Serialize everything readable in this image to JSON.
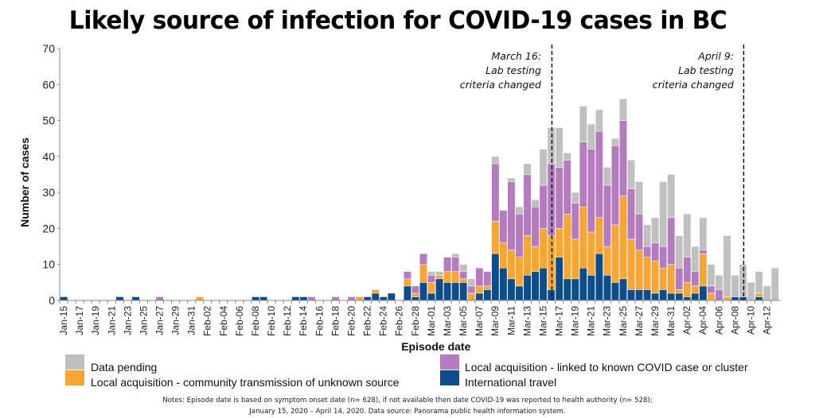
{
  "chart_data": {
    "type": "bar",
    "stacked": true,
    "title": "Likely source of infection for COVID-19 cases in BC",
    "xlabel": "Episode date",
    "ylabel": "Number of cases",
    "ylim": [
      0,
      70
    ],
    "yticks": [
      0,
      10,
      20,
      30,
      40,
      50,
      60,
      70
    ],
    "grid": false,
    "categories": [
      "Jan-15",
      "Jan-16",
      "Jan-17",
      "Jan-18",
      "Jan-19",
      "Jan-20",
      "Jan-21",
      "Jan-22",
      "Jan-23",
      "Jan-24",
      "Jan-25",
      "Jan-26",
      "Jan-27",
      "Jan-28",
      "Jan-29",
      "Jan-30",
      "Jan-31",
      "Feb-01",
      "Feb-02",
      "Feb-03",
      "Feb-04",
      "Feb-05",
      "Feb-06",
      "Feb-07",
      "Feb-08",
      "Feb-09",
      "Feb-10",
      "Feb-11",
      "Feb-12",
      "Feb-13",
      "Feb-14",
      "Feb-15",
      "Feb-16",
      "Feb-17",
      "Feb-18",
      "Feb-19",
      "Feb-20",
      "Feb-21",
      "Feb-22",
      "Feb-23",
      "Feb-24",
      "Feb-25",
      "Feb-26",
      "Feb-27",
      "Feb-28",
      "Feb-29",
      "Mar-01",
      "Mar-02",
      "Mar-03",
      "Mar-04",
      "Mar-05",
      "Mar-06",
      "Mar-07",
      "Mar-08",
      "Mar-09",
      "Mar-10",
      "Mar-11",
      "Mar-12",
      "Mar-13",
      "Mar-14",
      "Mar-15",
      "Mar-16",
      "Mar-17",
      "Mar-18",
      "Mar-19",
      "Mar-20",
      "Mar-21",
      "Mar-22",
      "Mar-23",
      "Mar-24",
      "Mar-25",
      "Mar-26",
      "Mar-27",
      "Mar-28",
      "Mar-29",
      "Mar-30",
      "Mar-31",
      "Apr-01",
      "Apr-02",
      "Apr-03",
      "Apr-04",
      "Apr-05",
      "Apr-06",
      "Apr-07",
      "Apr-08",
      "Apr-09",
      "Apr-10",
      "Apr-11",
      "Apr-12",
      "Apr-13"
    ],
    "tick_labels": [
      "Jan-15",
      "Jan-17",
      "Jan-19",
      "Jan-21",
      "Jan-23",
      "Jan-25",
      "Jan-27",
      "Jan-29",
      "Jan-31",
      "Feb-02",
      "Feb-04",
      "Feb-06",
      "Feb-08",
      "Feb-10",
      "Feb-12",
      "Feb-14",
      "Feb-16",
      "Feb-18",
      "Feb-20",
      "Feb-22",
      "Feb-24",
      "Feb-26",
      "Feb-28",
      "Mar-01",
      "Mar-03",
      "Mar-05",
      "Mar-07",
      "Mar-09",
      "Mar-11",
      "Mar-13",
      "Mar-15",
      "Mar-17",
      "Mar-19",
      "Mar-21",
      "Mar-23",
      "Mar-25",
      "Mar-27",
      "Mar-29",
      "Mar-31",
      "Apr-02",
      "Apr-04",
      "Apr-06",
      "Apr-08",
      "Apr-10",
      "Apr-12"
    ],
    "series": [
      {
        "name": "International travel",
        "color": "#0f4c8a",
        "values": [
          1,
          0,
          0,
          0,
          0,
          0,
          0,
          1,
          0,
          1,
          0,
          0,
          0,
          0,
          0,
          0,
          0,
          0,
          0,
          0,
          0,
          0,
          0,
          0,
          1,
          1,
          0,
          0,
          0,
          1,
          1,
          0,
          0,
          0,
          0,
          0,
          0,
          0,
          1,
          2,
          1,
          2,
          0,
          4,
          1,
          5,
          2,
          6,
          5,
          5,
          5,
          0,
          2,
          3,
          13,
          9,
          6,
          4,
          7,
          8,
          9,
          3,
          12,
          6,
          6,
          9,
          7,
          13,
          7,
          5,
          6,
          3,
          3,
          3,
          2,
          3,
          2,
          2,
          1,
          2,
          4,
          0,
          0,
          0,
          1,
          1,
          0,
          1,
          0,
          0
        ]
      },
      {
        "name": "Local acquisition - community transmission of unknown source",
        "color": "#f7a535",
        "values": [
          0,
          0,
          0,
          0,
          0,
          0,
          0,
          0,
          0,
          0,
          0,
          0,
          0,
          0,
          0,
          0,
          0,
          1,
          0,
          0,
          0,
          0,
          0,
          0,
          0,
          0,
          0,
          0,
          0,
          0,
          0,
          0,
          0,
          0,
          0,
          0,
          0,
          1,
          0,
          1,
          0,
          0,
          0,
          2,
          1,
          5,
          3,
          1,
          3,
          3,
          1,
          2,
          2,
          1,
          9,
          7,
          8,
          8,
          11,
          7,
          11,
          15,
          8,
          18,
          11,
          17,
          12,
          10,
          8,
          16,
          23,
          14,
          11,
          9,
          9,
          6,
          8,
          1,
          4,
          2,
          9,
          2,
          0,
          1,
          0,
          0,
          0,
          1,
          0,
          0
        ]
      },
      {
        "name": "Local acquisition - linked to known COVID case or cluster",
        "color": "#b57bbf",
        "values": [
          0,
          0,
          0,
          0,
          0,
          0,
          0,
          0,
          0,
          0,
          0,
          0,
          1,
          0,
          0,
          0,
          0,
          0,
          0,
          0,
          0,
          0,
          0,
          0,
          0,
          0,
          0,
          0,
          0,
          0,
          0,
          1,
          0,
          0,
          1,
          0,
          1,
          0,
          0,
          0,
          0,
          0,
          0,
          2,
          2,
          3,
          2,
          0,
          4,
          4,
          2,
          2,
          5,
          4,
          16,
          9,
          19,
          12,
          17,
          11,
          12,
          20,
          17,
          15,
          10,
          18,
          23,
          24,
          17,
          22,
          21,
          14,
          10,
          3,
          5,
          6,
          13,
          6,
          7,
          4,
          1,
          2,
          3,
          0,
          0,
          0,
          0,
          0,
          0,
          0
        ]
      },
      {
        "name": "Data pending",
        "color": "#c0c0c0",
        "values": [
          0,
          0,
          0,
          0,
          0,
          0,
          0,
          0,
          0,
          0,
          0,
          0,
          0,
          0,
          0,
          0,
          0,
          0,
          0,
          0,
          0,
          0,
          0,
          0,
          0,
          0,
          0,
          0,
          0,
          0,
          0,
          0,
          0,
          0,
          0,
          0,
          0,
          0,
          0,
          0,
          0,
          0,
          0,
          0,
          0,
          0,
          1,
          1,
          0,
          1,
          2,
          2,
          0,
          0,
          2,
          0,
          1,
          2,
          3,
          2,
          10,
          10,
          11,
          2,
          3,
          10,
          7,
          6,
          5,
          2,
          6,
          8,
          9,
          6,
          7,
          18,
          12,
          9,
          12,
          7,
          9,
          6,
          4,
          17,
          6,
          9,
          5,
          6,
          4,
          9
        ]
      }
    ],
    "annotations": [
      {
        "at": "Mar-16",
        "text": [
          "March 16:",
          "Lab testing",
          "criteria changed"
        ],
        "style": "dashed vertical line"
      },
      {
        "at": "Apr-09",
        "text": [
          "April 9:",
          "Lab testing",
          "criteria changed"
        ],
        "style": "dashed vertical line"
      }
    ],
    "legend": {
      "placement": "bottom",
      "order": [
        "Data pending",
        "Local acquisition - community transmission of unknown source",
        "Local acquisition - linked to known COVID case or cluster",
        "International travel"
      ]
    }
  },
  "notes": {
    "line1": "Notes: Episode date is based on symptom onset date (n= 628), if not available then date COVID-19 was reported to health authority (n= 528);",
    "line2": "January 15, 2020 – April 14, 2020. Data source: Panorama public health information system."
  }
}
